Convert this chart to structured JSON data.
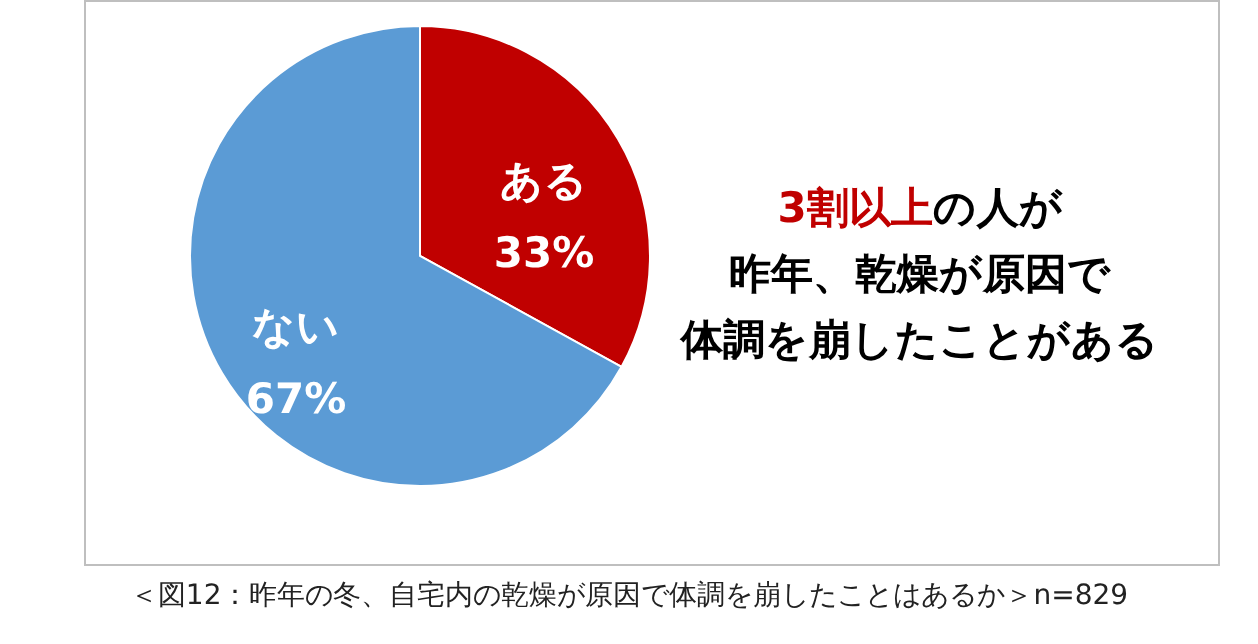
{
  "chart_data": {
    "type": "pie",
    "categories": [
      "ある",
      "ない"
    ],
    "values": [
      33,
      67
    ],
    "colors": [
      "#c00000",
      "#5b9bd5"
    ],
    "value_labels": [
      "33%",
      "67%"
    ],
    "annotations": [
      "3割以上",
      "の人が",
      "昨年、乾燥が原因で",
      "体調を崩したことがある",
      "＜図12：昨年の冬、自宅内の乾燥が原因で体調を崩したことはあるか＞n=829"
    ]
  }
}
